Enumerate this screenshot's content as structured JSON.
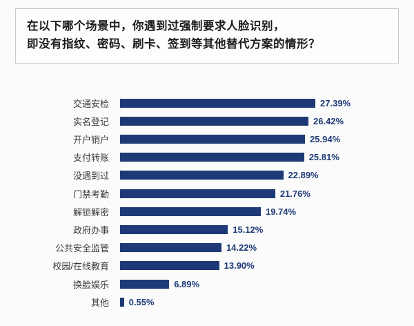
{
  "title": {
    "line1": "在以下哪个场景中，你遇到过强制要求人脸识别，",
    "line2": "即没有指纹、密码、刷卡、签到等其他替代方案的情形？"
  },
  "colors": {
    "bar": "#1e3a76",
    "value_label": "#1e3a76",
    "category_label": "#3a3a3a",
    "title_text": "#1c1c1c",
    "title_border": "#c9c9c9",
    "background": "#fbfbfb"
  },
  "chart_data": {
    "type": "bar",
    "orientation": "horizontal",
    "title": "在以下哪个场景中，你遇到过强制要求人脸识别，即没有指纹、密码、刷卡、签到等其他替代方案的情形？",
    "categories": [
      "交通安检",
      "实名登记",
      "开户销户",
      "支付转账",
      "没遇到过",
      "门禁考勤",
      "解锁解密",
      "政府办事",
      "公共安全监管",
      "校园/在线教育",
      "换脸娱乐",
      "其他"
    ],
    "values": [
      27.39,
      26.42,
      25.94,
      25.81,
      22.89,
      21.76,
      19.74,
      15.12,
      14.22,
      13.9,
      6.89,
      0.55
    ],
    "value_labels": [
      "27.39%",
      "26.42%",
      "25.94%",
      "25.81%",
      "22.89%",
      "21.76%",
      "19.74%",
      "15.12%",
      "14.22%",
      "13.90%",
      "6.89%",
      "0.55%"
    ],
    "unit": "%",
    "xlim": [
      0,
      30
    ],
    "grid": false,
    "legend": false,
    "data_labels": true
  }
}
